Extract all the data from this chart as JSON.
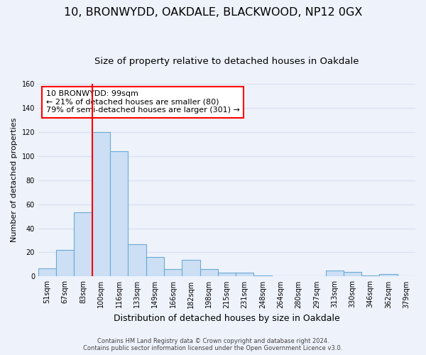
{
  "title1": "10, BRONWYDD, OAKDALE, BLACKWOOD, NP12 0GX",
  "title2": "Size of property relative to detached houses in Oakdale",
  "xlabel": "Distribution of detached houses by size in Oakdale",
  "ylabel": "Number of detached properties",
  "categories": [
    "51sqm",
    "67sqm",
    "83sqm",
    "100sqm",
    "116sqm",
    "133sqm",
    "149sqm",
    "166sqm",
    "182sqm",
    "198sqm",
    "215sqm",
    "231sqm",
    "248sqm",
    "264sqm",
    "280sqm",
    "297sqm",
    "313sqm",
    "330sqm",
    "346sqm",
    "362sqm",
    "379sqm"
  ],
  "values": [
    7,
    22,
    53,
    120,
    104,
    27,
    16,
    6,
    14,
    6,
    3,
    3,
    1,
    0,
    0,
    0,
    5,
    4,
    1,
    2,
    0
  ],
  "bar_color": "#ccdff5",
  "bar_edge_color": "#6aaad4",
  "red_line_bar_index": 3,
  "annotation_line1": "10 BRONWYDD: 99sqm",
  "annotation_line2": "← 21% of detached houses are smaller (80)",
  "annotation_line3": "79% of semi-detached houses are larger (301) →",
  "annotation_box_color": "white",
  "annotation_box_edge_color": "red",
  "ylim": [
    0,
    160
  ],
  "yticks": [
    0,
    20,
    40,
    60,
    80,
    100,
    120,
    140,
    160
  ],
  "footer1": "Contains HM Land Registry data © Crown copyright and database right 2024.",
  "footer2": "Contains public sector information licensed under the Open Government Licence v3.0.",
  "bg_color": "#eef2fb",
  "grid_color": "#d8e0f0",
  "title1_fontsize": 11.5,
  "title2_fontsize": 9.5,
  "xlabel_fontsize": 9,
  "ylabel_fontsize": 8,
  "tick_fontsize": 7,
  "footer_fontsize": 6,
  "annotation_fontsize": 8
}
